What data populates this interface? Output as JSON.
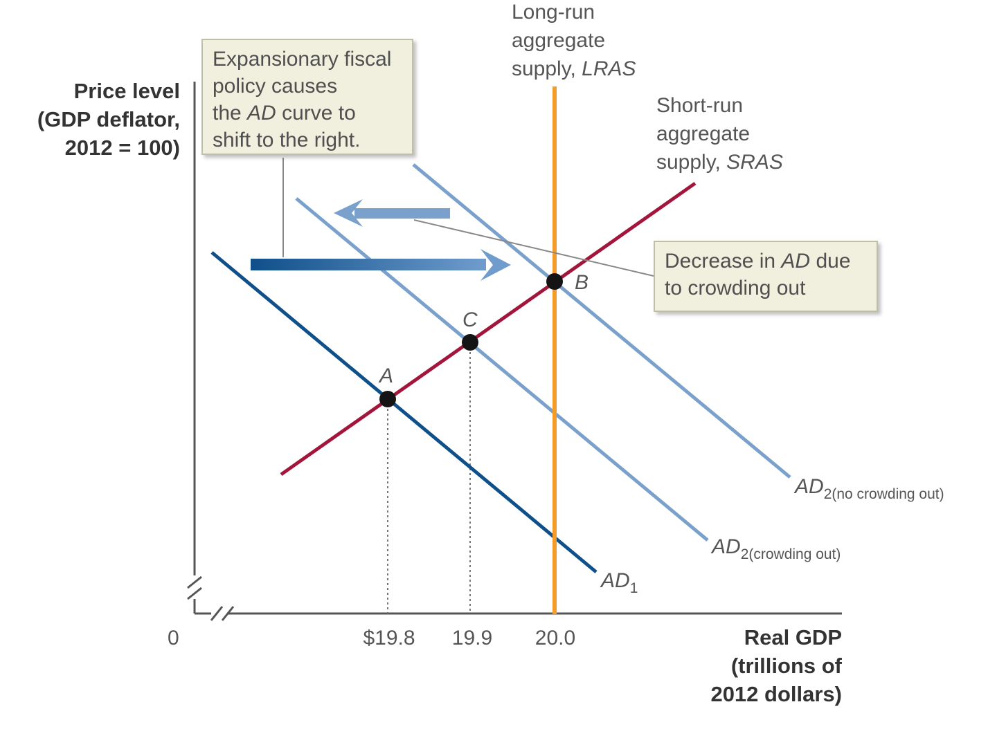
{
  "y_axis": {
    "lines": [
      "Price level",
      "(GDP deflator,",
      "2012 = 100)"
    ]
  },
  "x_axis": {
    "lines": [
      "Real GDP",
      "(trillions of",
      "2012 dollars)"
    ]
  },
  "origin_label": "0",
  "x_ticks": [
    "$19.8",
    "19.9",
    "20.0"
  ],
  "lras_label": {
    "lines": [
      "Long-run",
      "aggregate"
    ],
    "last_plain": "supply, ",
    "last_italic": "LRAS"
  },
  "sras_label": {
    "lines": [
      "Short-run",
      "aggregate"
    ],
    "last_plain": "supply, ",
    "last_italic": "SRAS"
  },
  "curves": {
    "ad1": {
      "main": "AD",
      "sub": "1"
    },
    "ad2_crowding": {
      "main": "AD",
      "sub": "2(crowding out)"
    },
    "ad2_no_crowding": {
      "main": "AD",
      "sub": "2(no crowding out)"
    }
  },
  "points": {
    "a": "A",
    "b": "B",
    "c": "C"
  },
  "callout_expansion": {
    "line1": "Expansionary fiscal",
    "line2": "policy causes",
    "line3_pre": "the ",
    "line3_italic": "AD",
    "line3_post": " curve to",
    "line4": "shift to the right."
  },
  "callout_crowding": {
    "line1_pre": "Decrease in ",
    "line1_italic": "AD",
    "line1_post": " due",
    "line2": "to crowding out"
  },
  "colors": {
    "ad1": "#0f4f8a",
    "ad2": "#7aa0cc",
    "sras": "#a3163c",
    "lras": "#f39c2a",
    "point": "#141414",
    "axis": "#555555"
  }
}
